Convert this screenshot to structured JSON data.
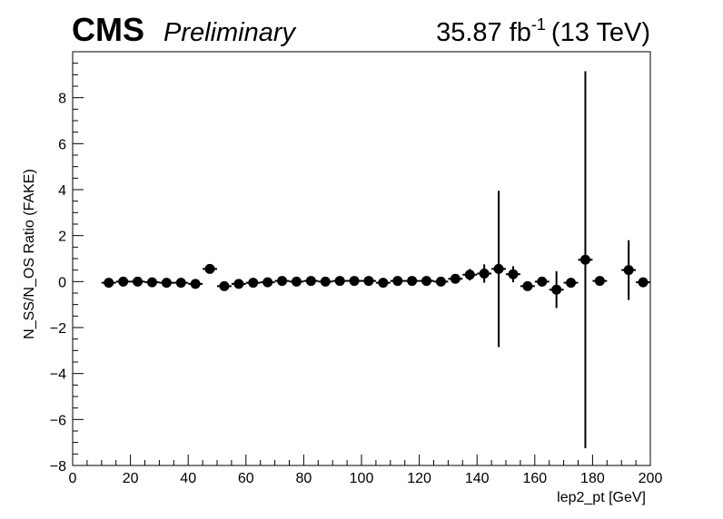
{
  "header": {
    "experiment": "CMS",
    "status": "Preliminary",
    "lumi_value": "35.87 fb",
    "lumi_exponent": "-1",
    "energy": "(13 TeV)"
  },
  "chart_data": {
    "type": "scatter",
    "xlabel": "lep2_pt [GeV]",
    "ylabel": "N_SS/N_OS Ratio (FAKE)",
    "xlim": [
      0,
      200
    ],
    "ylim": [
      -8,
      10
    ],
    "x_ticks": [
      "0",
      "20",
      "40",
      "60",
      "80",
      "100",
      "120",
      "140",
      "160",
      "180",
      "200"
    ],
    "y_ticks": [
      "−8",
      "−6",
      "−4",
      "−2",
      "0",
      "2",
      "4",
      "6",
      "8"
    ],
    "grid": false,
    "legend": "none",
    "marker_color": "#000000",
    "bin_width": 5,
    "points": [
      {
        "x": 12.5,
        "y": -0.05,
        "yerr": 0.05
      },
      {
        "x": 17.5,
        "y": 0.0,
        "yerr": 0.05
      },
      {
        "x": 22.5,
        "y": 0.0,
        "yerr": 0.05
      },
      {
        "x": 27.5,
        "y": -0.03,
        "yerr": 0.05
      },
      {
        "x": 32.5,
        "y": -0.05,
        "yerr": 0.05
      },
      {
        "x": 37.5,
        "y": -0.05,
        "yerr": 0.05
      },
      {
        "x": 42.5,
        "y": -0.1,
        "yerr": 0.05
      },
      {
        "x": 47.5,
        "y": 0.55,
        "yerr": 0.08
      },
      {
        "x": 52.5,
        "y": -0.2,
        "yerr": 0.05
      },
      {
        "x": 57.5,
        "y": -0.1,
        "yerr": 0.05
      },
      {
        "x": 62.5,
        "y": -0.05,
        "yerr": 0.05
      },
      {
        "x": 67.5,
        "y": -0.03,
        "yerr": 0.05
      },
      {
        "x": 72.5,
        "y": 0.03,
        "yerr": 0.05
      },
      {
        "x": 77.5,
        "y": 0.0,
        "yerr": 0.05
      },
      {
        "x": 82.5,
        "y": 0.03,
        "yerr": 0.05
      },
      {
        "x": 87.5,
        "y": 0.0,
        "yerr": 0.05
      },
      {
        "x": 92.5,
        "y": 0.03,
        "yerr": 0.05
      },
      {
        "x": 97.5,
        "y": 0.03,
        "yerr": 0.05
      },
      {
        "x": 102.5,
        "y": 0.03,
        "yerr": 0.05
      },
      {
        "x": 107.5,
        "y": -0.05,
        "yerr": 0.05
      },
      {
        "x": 112.5,
        "y": 0.03,
        "yerr": 0.05
      },
      {
        "x": 117.5,
        "y": 0.03,
        "yerr": 0.05
      },
      {
        "x": 122.5,
        "y": 0.03,
        "yerr": 0.05
      },
      {
        "x": 127.5,
        "y": 0.0,
        "yerr": 0.05
      },
      {
        "x": 132.5,
        "y": 0.12,
        "yerr": 0.08
      },
      {
        "x": 137.5,
        "y": 0.3,
        "yerr": 0.25
      },
      {
        "x": 142.5,
        "y": 0.35,
        "yerr": 0.4
      },
      {
        "x": 147.5,
        "y": 0.55,
        "yerr": 3.4
      },
      {
        "x": 152.5,
        "y": 0.32,
        "yerr": 0.35
      },
      {
        "x": 157.5,
        "y": -0.2,
        "yerr": 0.2
      },
      {
        "x": 162.5,
        "y": 0.0,
        "yerr": 0.1
      },
      {
        "x": 167.5,
        "y": -0.35,
        "yerr": 0.8
      },
      {
        "x": 172.5,
        "y": -0.05,
        "yerr": 0.1
      },
      {
        "x": 177.5,
        "y": 0.95,
        "yerr": 8.2
      },
      {
        "x": 182.5,
        "y": 0.03,
        "yerr": 0.05
      },
      {
        "x": 192.5,
        "y": 0.5,
        "yerr": 1.3
      },
      {
        "x": 197.5,
        "y": -0.03,
        "yerr": 0.05
      }
    ]
  }
}
